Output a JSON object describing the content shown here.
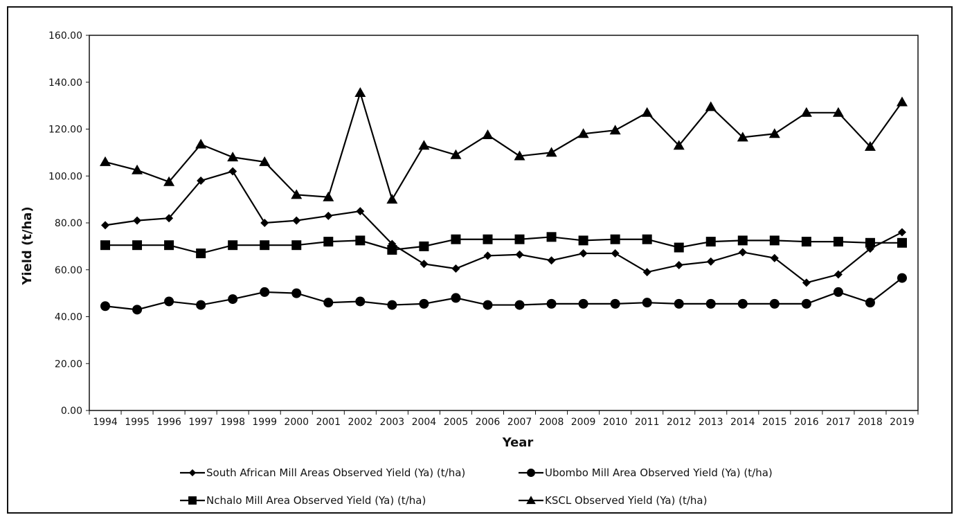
{
  "chart_data": {
    "type": "line",
    "xlabel": "Year",
    "ylabel": "Yield (t/ha)",
    "ylim": [
      0,
      160
    ],
    "yticks": [
      "0.00",
      "20.00",
      "40.00",
      "60.00",
      "80.00",
      "100.00",
      "120.00",
      "140.00",
      "160.00"
    ],
    "grid": false,
    "legend_position": "bottom",
    "categories": [
      "1994",
      "1995",
      "1996",
      "1997",
      "1998",
      "1999",
      "2000",
      "2001",
      "2002",
      "2003",
      "2004",
      "2005",
      "2006",
      "2007",
      "2008",
      "2009",
      "2010",
      "2011",
      "2012",
      "2013",
      "2014",
      "2015",
      "2016",
      "2017",
      "2018",
      "2019"
    ],
    "series": [
      {
        "name": "South African Mill Areas Observed Yield (Ya) (t/ha)",
        "marker": "diamond",
        "color": "#000000",
        "values": [
          79,
          81,
          82,
          98,
          102,
          80,
          81,
          83,
          85,
          71,
          62.5,
          60.5,
          66,
          66.5,
          64,
          67,
          67,
          59,
          62,
          63.5,
          67.5,
          65,
          54.5,
          58,
          69,
          76
        ]
      },
      {
        "name": "Ubombo Mill Area Observed Yield (Ya) (t/ha)",
        "marker": "circle",
        "color": "#000000",
        "values": [
          44.5,
          43,
          46.5,
          45,
          47.5,
          50.5,
          50,
          46,
          46.5,
          45,
          45.5,
          48,
          45,
          45,
          45.5,
          45.5,
          45.5,
          46,
          45.5,
          45.5,
          45.5,
          45.5,
          45.5,
          50.5,
          46,
          56.5
        ]
      },
      {
        "name": "Nchalo Mill Area Observed Yield (Ya) (t/ha)",
        "marker": "square",
        "color": "#000000",
        "values": [
          70.5,
          70.5,
          70.5,
          67,
          70.5,
          70.5,
          70.5,
          72,
          72.5,
          68.5,
          70,
          73,
          73,
          73,
          74,
          72.5,
          73,
          73,
          69.5,
          72,
          72.5,
          72.5,
          72,
          72,
          71.5,
          71.5
        ]
      },
      {
        "name": "KSCL Observed Yield (Ya) (t/ha)",
        "marker": "triangle",
        "color": "#000000",
        "values": [
          106,
          102.5,
          97.5,
          113.5,
          108,
          106,
          92,
          91,
          135.5,
          90,
          113,
          109,
          117.5,
          108.5,
          110,
          118,
          119.5,
          127,
          113,
          129.5,
          116.5,
          118,
          127,
          127,
          112.5,
          131.5
        ]
      }
    ]
  }
}
